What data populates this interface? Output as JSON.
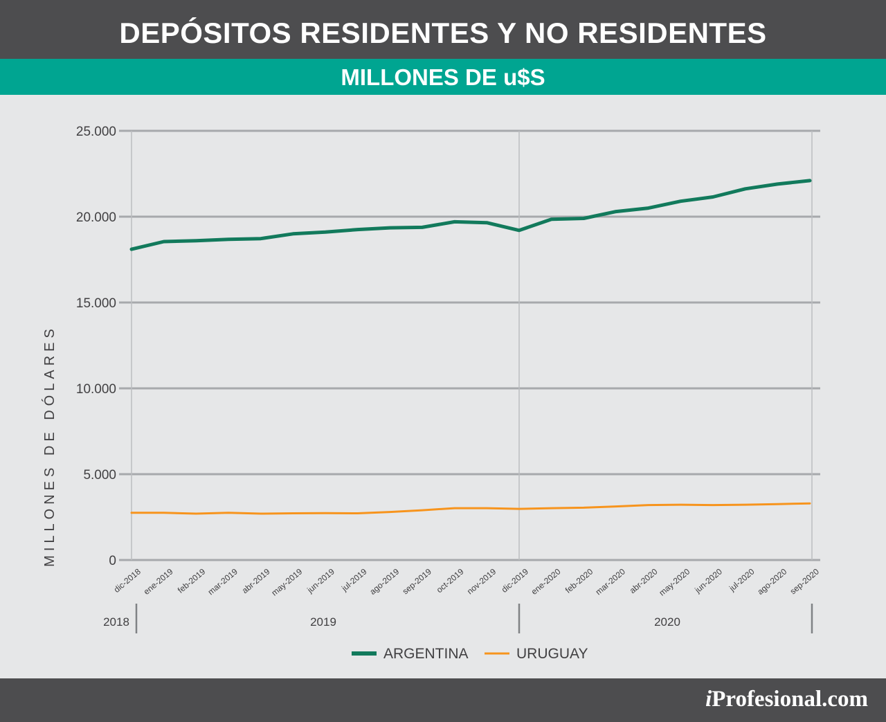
{
  "header": {
    "title": "DEPÓSITOS RESIDENTES Y NO RESIDENTES",
    "subtitle": "MILLONES DE u$S"
  },
  "footer": {
    "brand_prefix": "i",
    "brand_rest": "Profesional.com"
  },
  "colors": {
    "title_bar": "#4d4d4f",
    "subtitle_bar": "#00a591",
    "background": "#e6e7e8",
    "argentina": "#127a5c",
    "uruguay": "#f7941d",
    "grid": "#a7a9ac"
  },
  "chart_data": {
    "type": "line",
    "title": "DEPÓSITOS RESIDENTES Y NO RESIDENTES",
    "subtitle": "MILLONES DE u$S",
    "xlabel": "",
    "ylabel": "MILLONES DE DÓLARES",
    "ylim": [
      0,
      25000
    ],
    "yticks": [
      0,
      5000,
      10000,
      15000,
      20000,
      25000
    ],
    "ytick_labels": [
      "0",
      "5.000",
      "10.000",
      "15.000",
      "20.000",
      "25.000"
    ],
    "categories": [
      "dic-2018",
      "ene-2019",
      "feb-2019",
      "mar-2019",
      "abr-2019",
      "may-2019",
      "jun-2019",
      "jul-2019",
      "ago-2019",
      "sep-2019",
      "oct-2019",
      "nov-2019",
      "dic-2019",
      "ene-2020",
      "feb-2020",
      "mar-2020",
      "abr-2020",
      "may-2020",
      "jun-2020",
      "jul-2020",
      "ago-2020",
      "sep-2020"
    ],
    "year_groups": [
      {
        "label": "2018",
        "from": 0,
        "to": 0
      },
      {
        "label": "2019",
        "from": 1,
        "to": 12
      },
      {
        "label": "2020",
        "from": 13,
        "to": 21
      }
    ],
    "series": [
      {
        "name": "ARGENTINA",
        "color": "#127a5c",
        "values": [
          18100,
          18550,
          18600,
          18680,
          18720,
          19000,
          19100,
          19250,
          19350,
          19380,
          19700,
          19650,
          19200,
          19850,
          19900,
          20300,
          20500,
          20900,
          21150,
          21620,
          21900,
          22100
        ]
      },
      {
        "name": "URUGUAY",
        "color": "#f7941d",
        "values": [
          2750,
          2750,
          2700,
          2750,
          2700,
          2720,
          2730,
          2720,
          2800,
          2900,
          3020,
          3020,
          2980,
          3020,
          3050,
          3120,
          3200,
          3220,
          3200,
          3220,
          3260,
          3300
        ]
      }
    ],
    "grid": true,
    "legend_position": "bottom-center"
  }
}
